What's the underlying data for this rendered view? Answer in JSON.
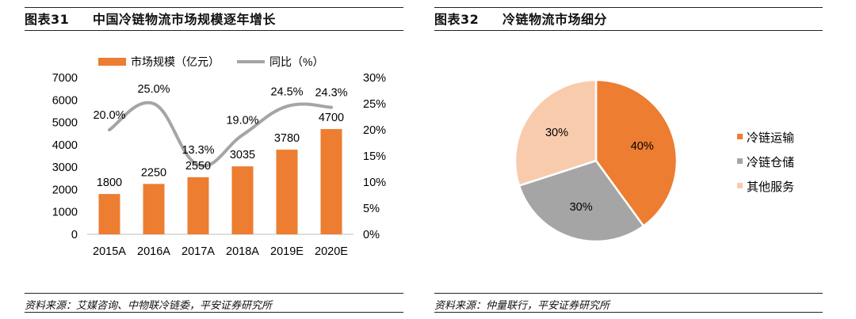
{
  "charts": {
    "left": {
      "figure_number": "图表31",
      "title": "中国冷链物流市场规模逐年增长",
      "source": "资料来源：艾媒咨询、中物联冷链委，平安证券研究所"
    },
    "right": {
      "figure_number": "图表32",
      "title": "冷链物流市场细分",
      "source": "资料来源：仲量联行，平安证券研究所"
    }
  },
  "chart_data": [
    {
      "type": "bar",
      "categories": [
        "2015A",
        "2016A",
        "2017A",
        "2018A",
        "2019E",
        "2020E"
      ],
      "series": [
        {
          "name": "市场规模（亿元）",
          "type": "bar",
          "axis": "left",
          "values": [
            1800,
            2250,
            2550,
            3035,
            3780,
            4700
          ],
          "labels": [
            "1800",
            "2250",
            "2550",
            "3035",
            "3780",
            "4700"
          ],
          "color": "#ED7D31"
        },
        {
          "name": "同比（%）",
          "type": "line",
          "axis": "right",
          "values": [
            20.0,
            25.0,
            13.3,
            19.0,
            24.5,
            24.3
          ],
          "labels": [
            "20.0%",
            "25.0%",
            "13.3%",
            "19.0%",
            "24.5%",
            "24.3%"
          ],
          "color": "#A5A5A5"
        }
      ],
      "ylim": [
        0,
        7000
      ],
      "yticks": [
        "0",
        "1000",
        "2000",
        "3000",
        "4000",
        "5000",
        "6000",
        "7000"
      ],
      "y2lim": [
        0,
        30
      ],
      "y2ticks": [
        "0%",
        "5%",
        "10%",
        "15%",
        "20%",
        "25%",
        "30%"
      ],
      "legend": "top",
      "grid": false
    },
    {
      "type": "pie",
      "slices": [
        {
          "label": "冷链运输",
          "value": 40,
          "display": "40%",
          "color": "#ED7D31"
        },
        {
          "label": "冷链仓储",
          "value": 30,
          "display": "30%",
          "color": "#A5A5A5"
        },
        {
          "label": "其他服务",
          "value": 30,
          "display": "30%",
          "color": "#F8CBAD"
        }
      ],
      "legend": "right"
    }
  ]
}
